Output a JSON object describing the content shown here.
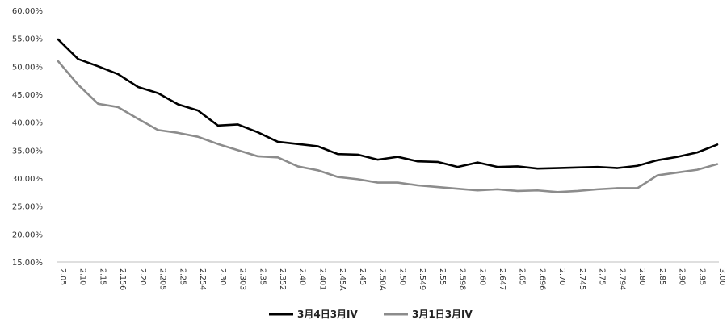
{
  "chart_data": {
    "type": "line",
    "title": "",
    "xlabel": "",
    "ylabel": "",
    "ylim": [
      0.15,
      0.6
    ],
    "yticks": [
      "15.00%",
      "20.00%",
      "25.00%",
      "30.00%",
      "35.00%",
      "40.00%",
      "45.00%",
      "50.00%",
      "55.00%",
      "60.00%"
    ],
    "categories": [
      "2.05",
      "2.10",
      "2.15",
      "2.156",
      "2.20",
      "2.205",
      "2.25",
      "2.254",
      "2.30",
      "2.303",
      "2.35",
      "2.352",
      "2.40",
      "2.401",
      "2.45A",
      "2.45",
      "2.50A",
      "2.50",
      "2.549",
      "2.55",
      "2.598",
      "2.60",
      "2.647",
      "2.65",
      "2.696",
      "2.70",
      "2.745",
      "2.75",
      "2.794",
      "2.80",
      "2.85",
      "2.90",
      "2.95",
      "3.00"
    ],
    "grid": false,
    "legend_position": "bottom",
    "series": [
      {
        "name": "3月4日3月IV",
        "color": "#000000",
        "values": [
          0.548,
          0.513,
          0.5,
          0.486,
          0.463,
          0.452,
          0.432,
          0.421,
          0.394,
          0.396,
          0.382,
          0.365,
          0.361,
          0.357,
          0.343,
          0.342,
          0.333,
          0.338,
          0.33,
          0.329,
          0.32,
          0.328,
          0.32,
          0.321,
          0.317,
          0.318,
          0.319,
          0.32,
          0.318,
          0.322,
          0.332,
          0.338,
          0.346,
          0.36
        ]
      },
      {
        "name": "3月1日3月IV",
        "color": "#8c8c8c",
        "values": [
          0.509,
          0.467,
          0.433,
          0.427,
          0.406,
          0.386,
          0.381,
          0.374,
          0.361,
          0.35,
          0.339,
          0.337,
          0.321,
          0.314,
          0.302,
          0.298,
          0.292,
          0.292,
          0.287,
          0.284,
          0.281,
          0.278,
          0.28,
          0.277,
          0.278,
          0.275,
          0.277,
          0.28,
          0.282,
          0.282,
          0.305,
          0.31,
          0.315,
          0.325
        ]
      }
    ]
  }
}
